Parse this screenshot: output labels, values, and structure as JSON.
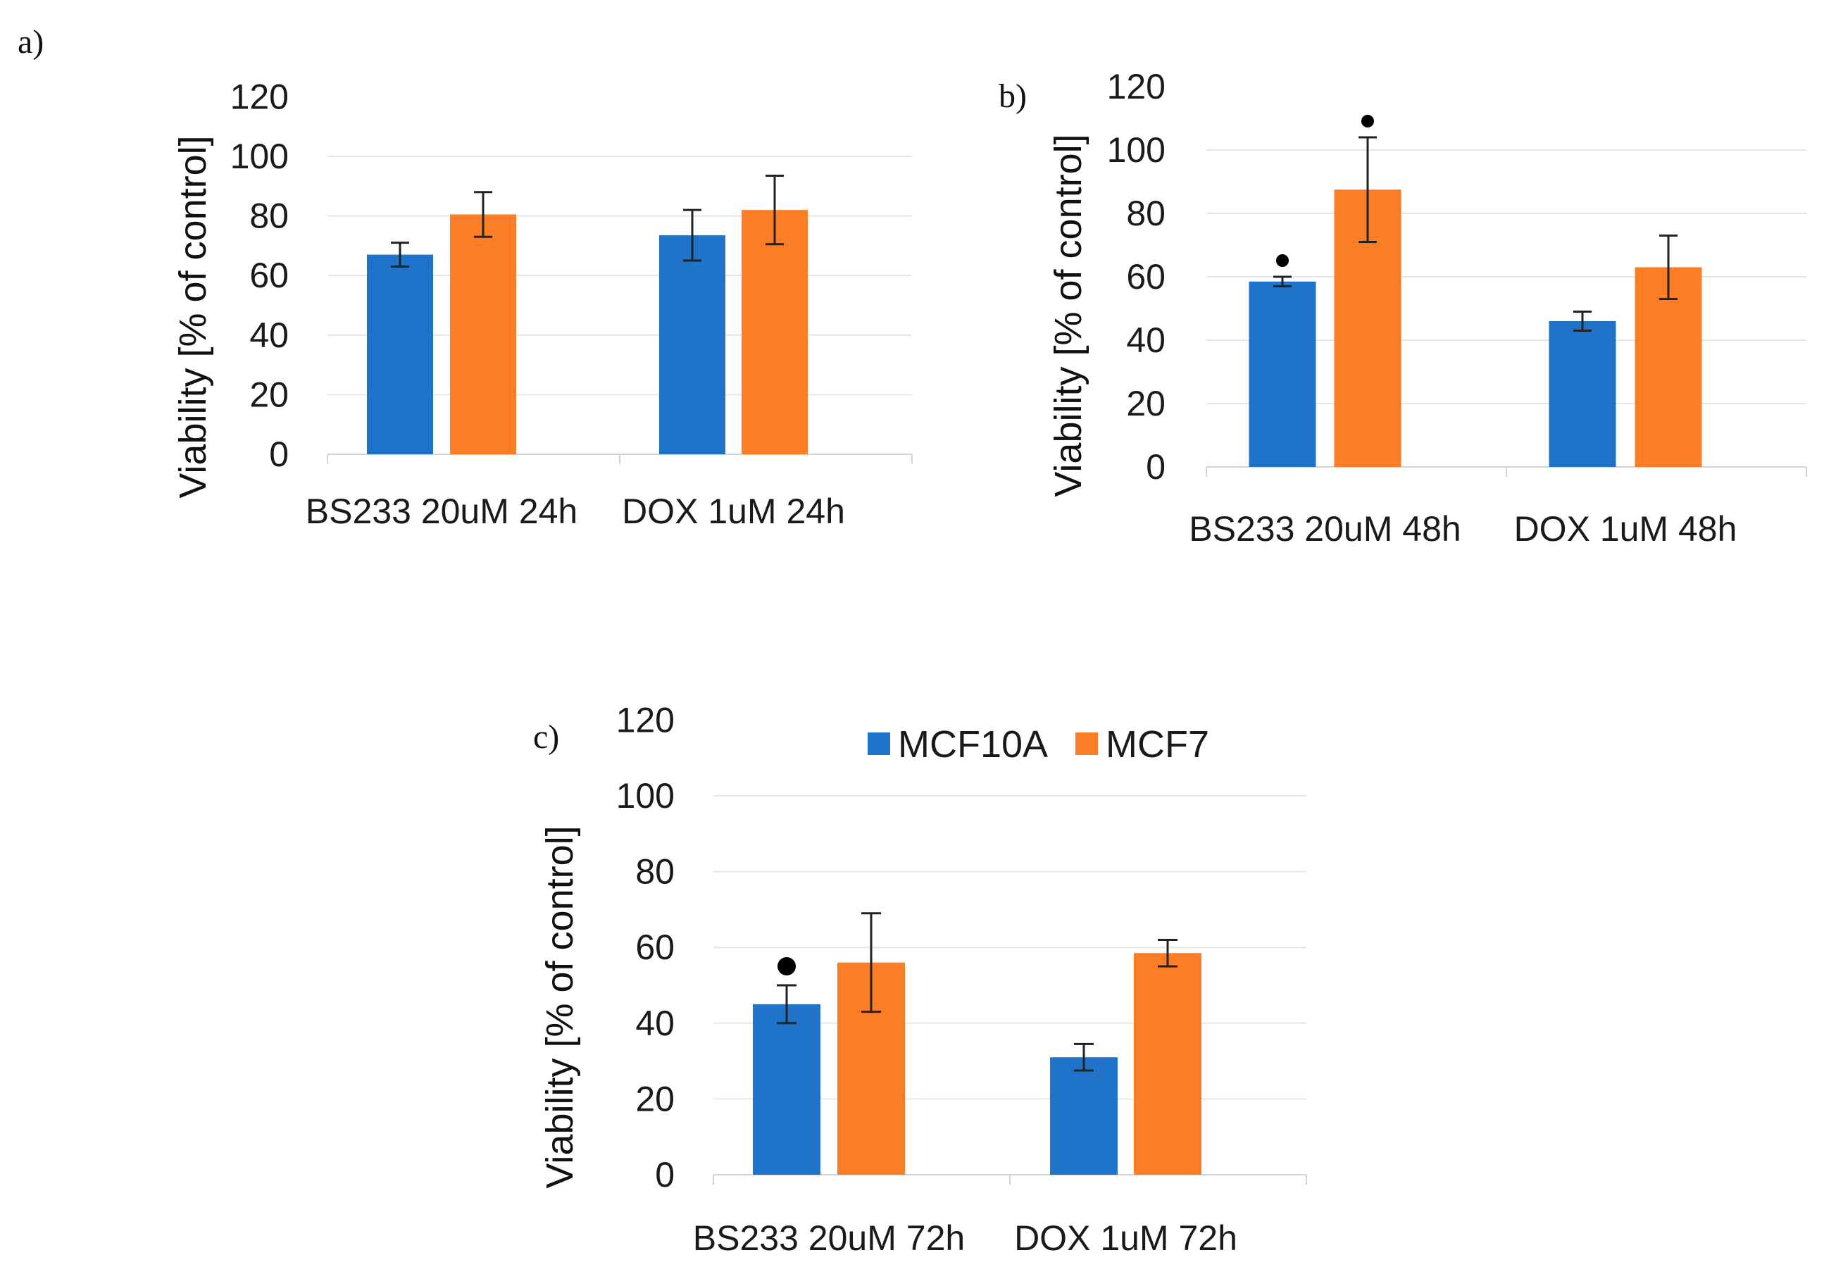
{
  "legend": [
    {
      "name": "MCF10A",
      "color": "#1F73C8"
    },
    {
      "name": "MCF7",
      "color": "#FB7D25"
    }
  ],
  "chart_data": [
    {
      "type": "bar",
      "panel_label": "a)",
      "ylabel": "Viability [% of control]",
      "ylim": [
        0,
        120
      ],
      "yticks": [
        "0",
        "20",
        "40",
        "60",
        "80",
        "100",
        "120"
      ],
      "grid": true,
      "categories": [
        "BS233 20uM 24h",
        "DOX 1uM 24h"
      ],
      "series": [
        {
          "name": "MCF10A",
          "color": "#1F73C8",
          "values": [
            67,
            73.5
          ],
          "errors": [
            4,
            8.5
          ],
          "markers": [
            false,
            false
          ]
        },
        {
          "name": "MCF7",
          "color": "#FB7D25",
          "values": [
            80.5,
            82
          ],
          "errors": [
            7.5,
            11.5
          ],
          "markers": [
            false,
            false
          ]
        }
      ]
    },
    {
      "type": "bar",
      "panel_label": "b)",
      "ylabel": "Viability [% of control]",
      "ylim": [
        0,
        120
      ],
      "yticks": [
        "0",
        "20",
        "40",
        "60",
        "80",
        "100",
        "120"
      ],
      "grid": true,
      "categories": [
        "BS233 20uM 48h",
        "DOX 1uM 48h"
      ],
      "series": [
        {
          "name": "MCF10A",
          "color": "#1F73C8",
          "values": [
            58.5,
            46
          ],
          "errors": [
            1.5,
            3
          ],
          "markers": [
            true,
            false
          ]
        },
        {
          "name": "MCF7",
          "color": "#FB7D25",
          "values": [
            87.5,
            63
          ],
          "errors": [
            16.5,
            10
          ],
          "markers": [
            true,
            false
          ]
        }
      ]
    },
    {
      "type": "bar",
      "panel_label": "c)",
      "ylabel": "Viability [% of control]",
      "ylim": [
        0,
        120
      ],
      "yticks": [
        "0",
        "20",
        "40",
        "60",
        "80",
        "100",
        "120"
      ],
      "grid": true,
      "legend_position": "top",
      "categories": [
        "BS233 20uM 72h",
        "DOX 1uM 72h"
      ],
      "series": [
        {
          "name": "MCF10A",
          "color": "#1F73C8",
          "values": [
            45,
            31
          ],
          "errors": [
            5,
            3.5
          ],
          "markers": [
            true,
            false
          ]
        },
        {
          "name": "MCF7",
          "color": "#FB7D25",
          "values": [
            56,
            58.5
          ],
          "errors": [
            13,
            3.5
          ],
          "markers": [
            false,
            false
          ]
        }
      ]
    }
  ]
}
